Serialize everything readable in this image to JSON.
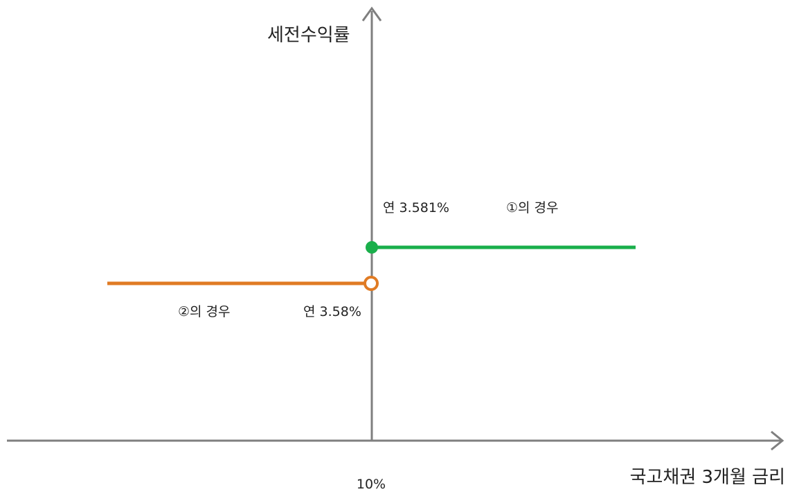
{
  "y_axis_label": "세전수익률",
  "x_axis_label": "국고채권 3개월 금리",
  "x_tick": "10%",
  "case1": {
    "label": "①의 경우",
    "rate": "연 3.581%",
    "color": "#1aaf4b"
  },
  "case2": {
    "label": "②의 경우",
    "rate": "연 3.58%",
    "color": "#e07b24"
  },
  "axis_color": "#7f7f7f"
}
